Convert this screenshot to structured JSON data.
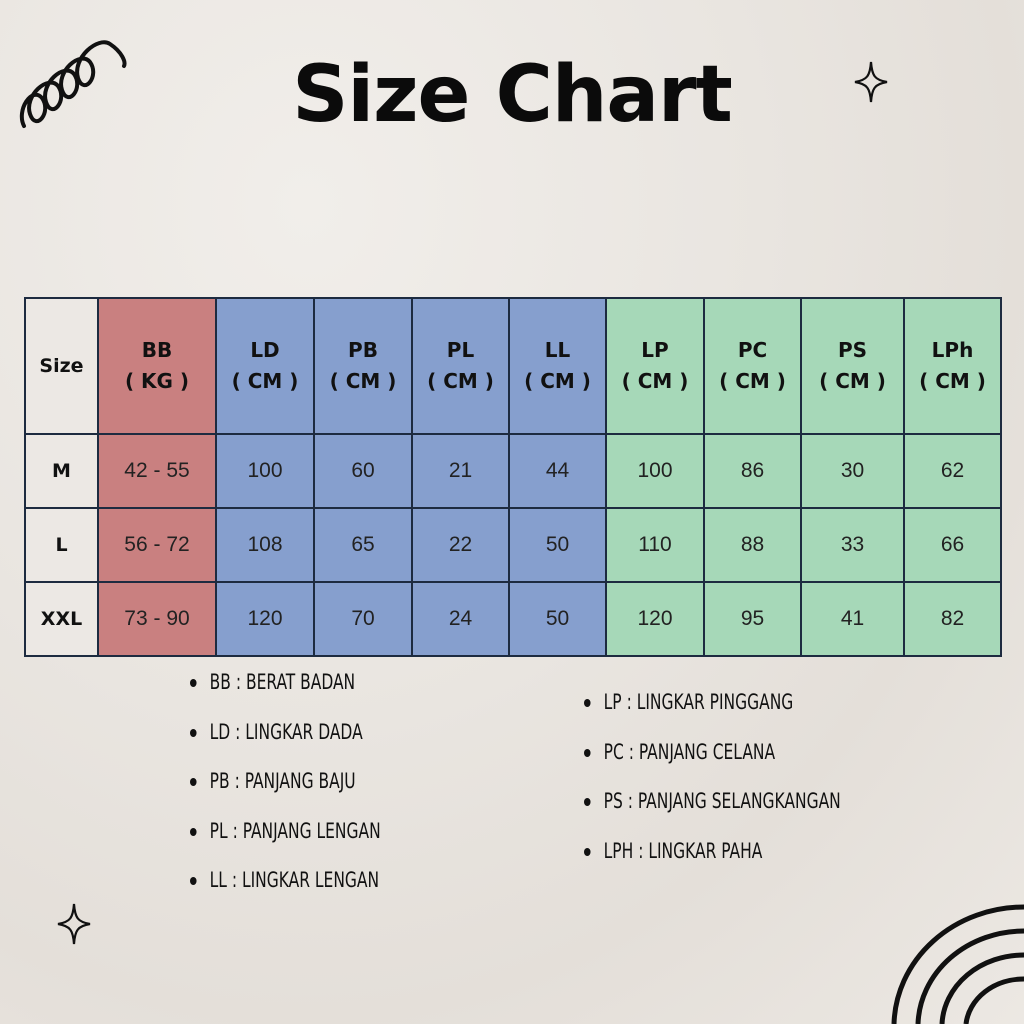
{
  "title": "Size Chart",
  "chart_data": {
    "type": "table",
    "columns": [
      {
        "label": "Size",
        "unit": ""
      },
      {
        "label": "BB",
        "unit": "( KG )",
        "color": "#c98080"
      },
      {
        "label": "LD",
        "unit": "( CM )",
        "color": "#869fce"
      },
      {
        "label": "PB",
        "unit": "( CM )",
        "color": "#869fce"
      },
      {
        "label": "PL",
        "unit": "( CM )",
        "color": "#869fce"
      },
      {
        "label": "LL",
        "unit": "( CM )",
        "color": "#869fce"
      },
      {
        "label": "LP",
        "unit": "( CM )",
        "color": "#a6d8b8"
      },
      {
        "label": "PC",
        "unit": "( CM )",
        "color": "#a6d8b8"
      },
      {
        "label": "PS",
        "unit": "( CM )",
        "color": "#a6d8b8"
      },
      {
        "label": "LPh",
        "unit": "( CM )",
        "color": "#a6d8b8"
      }
    ],
    "rows": [
      [
        "M",
        "42 - 55",
        "100",
        "60",
        "21",
        "44",
        "100",
        "86",
        "30",
        "62"
      ],
      [
        "L",
        "56 - 72",
        "108",
        "65",
        "22",
        "50",
        "110",
        "88",
        "33",
        "66"
      ],
      [
        "XXL",
        "73 - 90",
        "120",
        "70",
        "24",
        "50",
        "120",
        "95",
        "41",
        "82"
      ]
    ]
  },
  "legend_left": [
    "BB : BERAT BADAN",
    "LD : LINGKAR DADA",
    "PB : PANJANG BAJU",
    "PL : PANJANG LENGAN",
    "LL : LINGKAR LENGAN"
  ],
  "legend_right": [
    "LP : LINGKAR PINGGANG",
    "PC : PANJANG CELANA",
    "PS : PANJANG SELANGKANGAN",
    "LPH : LINGKAR PAHA"
  ],
  "decorations": [
    "squiggle-icon",
    "sparkle-icon",
    "sparkle-icon",
    "rainbow-arcs-icon"
  ]
}
